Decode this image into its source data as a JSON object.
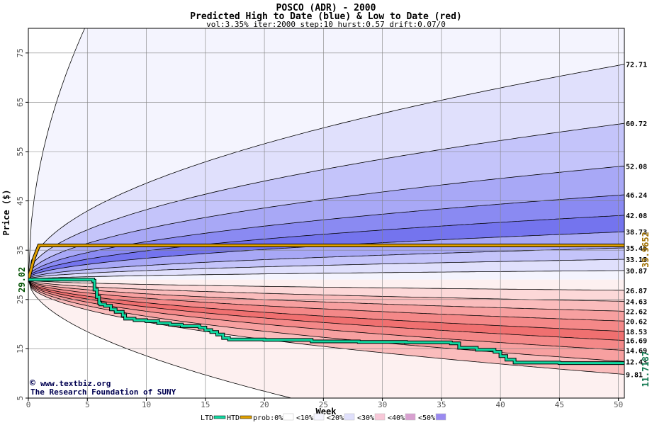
{
  "chart_data": {
    "type": "area",
    "title": "POSCO (ADR) - 2000",
    "subtitle": "Predicted High to Date (blue) &  Low to Date (red)",
    "params": "vol:3.35% iter:2000 step:10 hurst:0.57 drift:0.07/0",
    "xlabel": "Week",
    "ylabel": "Price ($)",
    "xlim": [
      0,
      50.5
    ],
    "ylim": [
      5,
      80
    ],
    "x_ticks": [
      0,
      5,
      10,
      15,
      20,
      25,
      30,
      35,
      40,
      45,
      50
    ],
    "y_ticks": [
      5,
      15,
      25,
      35,
      45,
      55,
      65,
      75
    ],
    "start_price": 29.02,
    "start_price_label": "29.02",
    "high_band_end_labels": [
      "72.71",
      "60.72",
      "52.08",
      "46.24",
      "42.08",
      "38.73",
      "35.46",
      "33.15",
      "30.87"
    ],
    "low_band_end_labels": [
      "26.87",
      "24.63",
      "22.62",
      "20.62",
      "18.53",
      "16.69",
      "14.69",
      "12.43",
      "9.81"
    ],
    "high_band_end_values": [
      72.71,
      60.72,
      52.08,
      46.24,
      42.08,
      38.73,
      35.46,
      33.15,
      30.87
    ],
    "low_band_end_values": [
      26.87,
      24.63,
      22.62,
      20.62,
      18.53,
      16.69,
      14.69,
      12.43,
      9.81
    ],
    "htd_value": 35.9652,
    "htd_label": "35.9652",
    "ltd_value": 11.7187,
    "ltd_label": "11.7187",
    "ltd_series": {
      "name": "LTD",
      "x": [
        0,
        5.5,
        5.6,
        5.8,
        6.0,
        6.1,
        6.5,
        7.0,
        7.4,
        8.0,
        8.2,
        9.0,
        10.0,
        11.0,
        12.0,
        13.0,
        14.5,
        15.0,
        15.5,
        16.0,
        16.5,
        17.0,
        20.0,
        24.0,
        28.0,
        32.0,
        35.8,
        36.5,
        38.0,
        39.5,
        40.0,
        40.5,
        41.2,
        45.0,
        50.5
      ],
      "y": [
        29.02,
        28.8,
        27.0,
        25.5,
        24.3,
        24.0,
        23.7,
        23.0,
        22.5,
        21.8,
        21.1,
        20.8,
        20.6,
        20.2,
        19.9,
        19.6,
        19.3,
        18.8,
        18.4,
        17.9,
        17.2,
        16.9,
        16.8,
        16.5,
        16.4,
        16.3,
        16.1,
        15.2,
        14.8,
        14.4,
        13.5,
        12.8,
        12.2,
        12.1,
        12.0
      ]
    },
    "htd_series": {
      "name": "HTD",
      "x": [
        0,
        0.5,
        0.9,
        50.5
      ],
      "y": [
        29.02,
        33.5,
        35.9652,
        35.9652
      ]
    },
    "colors": {
      "high": [
        "#f4f4fe",
        "#e0e0fc",
        "#c4c4fa",
        "#a8a8f6",
        "#8a8af2",
        "#7474ee"
      ],
      "low": [
        "#fdf0f0",
        "#fcd8d8",
        "#fabcbc",
        "#f7a0a0",
        "#f48888",
        "#f07070"
      ],
      "ltd": "#10d8a0",
      "htd": "#e0a000",
      "ltd_label": "#107850",
      "htd_label": "#a07000",
      "start_label": "#005000",
      "frame": "#000000",
      "grid": "#808080"
    },
    "grid": true,
    "legend_position": "bottom",
    "legend": [
      {
        "label": "LTD",
        "color": "#10d8a0",
        "kind": "line"
      },
      {
        "label": "HTD",
        "color": "#e0a000",
        "kind": "line"
      },
      {
        "label": "prob:0%",
        "color": "#ffffff",
        "kind": "swatch"
      },
      {
        "label": "<10%",
        "color": "#f4f4fe",
        "kind": "swatch"
      },
      {
        "label": "<20%",
        "color": "#e0e0fc",
        "kind": "swatch"
      },
      {
        "label": "<30%",
        "color": "#f8c8d8",
        "kind": "swatch"
      },
      {
        "label": "<40%",
        "color": "#d8a0d0",
        "kind": "swatch"
      },
      {
        "label": "<50%",
        "color": "#9a8af0",
        "kind": "swatch"
      }
    ]
  },
  "credits": {
    "site": "www.textbiz.org",
    "copyright_symbol": "©",
    "org": "The Research Foundation of SUNY"
  }
}
